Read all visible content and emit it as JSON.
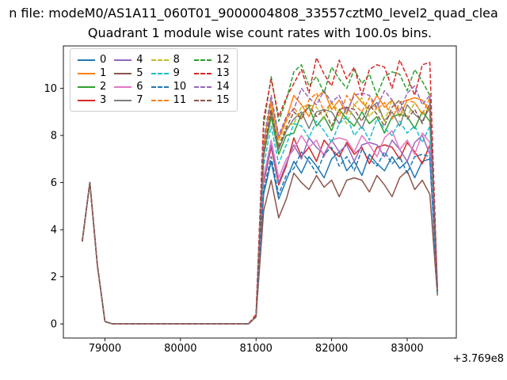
{
  "figure": {
    "suptitle": "n file: modeM0/AS1A11_060T01_9000004808_33557cztM0_level2_quad_clea",
    "title": "Quadrant 1 module wise count rates with 100.0s bins."
  },
  "chart_data": {
    "type": "line",
    "title": "Quadrant 1 module wise count rates with 100.0s bins.",
    "suptitle": "n file: modeM0/AS1A11_060T01_9000004808_33557cztM0_level2_quad_clea",
    "xlabel": "",
    "ylabel": "",
    "grid": false,
    "legend_position": "upper left",
    "legend_columns": 4,
    "x_ticks": [
      79000,
      80000,
      81000,
      82000,
      83000
    ],
    "y_ticks": [
      0,
      2,
      4,
      6,
      8,
      10
    ],
    "x_offset_label": "+3.769e8",
    "xlim": [
      78450,
      83650
    ],
    "ylim": [
      -0.6,
      11.8
    ],
    "x": [
      78700,
      78800,
      78900,
      79000,
      79100,
      79200,
      79300,
      79400,
      79500,
      79600,
      79700,
      79800,
      79900,
      80000,
      80100,
      80200,
      80300,
      80400,
      80500,
      80600,
      80700,
      80800,
      80900,
      81000,
      81100,
      81200,
      81300,
      81400,
      81500,
      81600,
      81700,
      81800,
      81900,
      82000,
      82100,
      82200,
      82300,
      82400,
      82500,
      82600,
      82700,
      82800,
      82900,
      83000,
      83100,
      83200,
      83300,
      83400
    ],
    "series": [
      {
        "name": "0",
        "color": "#1f77b4",
        "dash": false,
        "values": [
          3.5,
          6.0,
          2.5,
          0.1,
          0,
          0,
          0,
          0,
          0,
          0,
          0,
          0,
          0,
          0,
          0,
          0,
          0,
          0,
          0,
          0,
          0,
          0,
          0,
          0.3,
          5.5,
          6.9,
          5.3,
          6.1,
          6.9,
          6.4,
          7.1,
          6.7,
          6.2,
          7.0,
          7.3,
          6.5,
          6.9,
          6.3,
          7.2,
          6.8,
          6.5,
          7.1,
          6.6,
          6.9,
          6.2,
          6.9,
          7.0,
          1.3
        ]
      },
      {
        "name": "1",
        "color": "#ff7f0e",
        "dash": false,
        "values": [
          3.5,
          6.0,
          2.5,
          0.1,
          0,
          0,
          0,
          0,
          0,
          0,
          0,
          0,
          0,
          0,
          0,
          0,
          0,
          0,
          0,
          0,
          0,
          0,
          0,
          0.3,
          7.6,
          9.5,
          7.9,
          8.7,
          9.7,
          9.3,
          8.8,
          9.6,
          9.9,
          9.1,
          9.5,
          8.9,
          9.8,
          9.4,
          9.1,
          9.7,
          9.2,
          9.5,
          8.8,
          9.5,
          9.6,
          9.5,
          9.0,
          1.4
        ]
      },
      {
        "name": "2",
        "color": "#2ca02c",
        "dash": false,
        "values": [
          3.5,
          6.0,
          2.5,
          0.1,
          0,
          0,
          0,
          0,
          0,
          0,
          0,
          0,
          0,
          0,
          0,
          0,
          0,
          0,
          0,
          0,
          0,
          0,
          0,
          0.3,
          7.1,
          8.8,
          7.2,
          8.0,
          8.1,
          8.9,
          9.2,
          8.4,
          8.8,
          8.2,
          9.1,
          8.7,
          8.4,
          9.0,
          8.5,
          8.8,
          8.1,
          8.8,
          8.9,
          8.8,
          8.3,
          9.0,
          8.6,
          1.3
        ]
      },
      {
        "name": "3",
        "color": "#d62728",
        "dash": false,
        "values": [
          3.5,
          6.0,
          2.5,
          0.1,
          0,
          0,
          0,
          0,
          0,
          0,
          0,
          0,
          0,
          0,
          0,
          0,
          0,
          0,
          0,
          0,
          0,
          0,
          0,
          0.3,
          6.0,
          7.5,
          5.9,
          6.7,
          7.9,
          7.1,
          7.5,
          6.9,
          7.8,
          7.4,
          7.1,
          7.7,
          7.2,
          7.5,
          6.8,
          7.5,
          7.6,
          7.5,
          7.0,
          7.7,
          7.3,
          6.8,
          7.6,
          1.3
        ]
      },
      {
        "name": "4",
        "color": "#9467bd",
        "dash": false,
        "values": [
          3.5,
          6.0,
          2.5,
          0.1,
          0,
          0,
          0,
          0,
          0,
          0,
          0,
          0,
          0,
          0,
          0,
          0,
          0,
          0,
          0,
          0,
          0,
          0,
          0,
          0.3,
          6.1,
          7.6,
          6.0,
          6.8,
          7.6,
          7.0,
          7.9,
          7.5,
          7.2,
          7.8,
          7.3,
          7.6,
          6.9,
          7.6,
          7.7,
          7.6,
          7.1,
          7.8,
          7.4,
          6.9,
          7.7,
          8.0,
          7.2,
          1.4
        ]
      },
      {
        "name": "5",
        "color": "#8c564b",
        "dash": false,
        "values": [
          3.5,
          6.0,
          2.5,
          0.1,
          0,
          0,
          0,
          0,
          0,
          0,
          0,
          0,
          0,
          0,
          0,
          0,
          0,
          0,
          0,
          0,
          0,
          0,
          0,
          0.3,
          4.8,
          6.1,
          4.5,
          5.3,
          6.4,
          6.0,
          5.7,
          6.3,
          5.8,
          6.1,
          5.4,
          6.1,
          6.2,
          6.1,
          5.6,
          6.3,
          5.9,
          5.4,
          6.2,
          6.5,
          5.7,
          6.1,
          5.5,
          1.2
        ]
      },
      {
        "name": "6",
        "color": "#e377c2",
        "dash": false,
        "values": [
          3.5,
          6.0,
          2.5,
          0.1,
          0,
          0,
          0,
          0,
          0,
          0,
          0,
          0,
          0,
          0,
          0,
          0,
          0,
          0,
          0,
          0,
          0,
          0,
          0,
          0.3,
          6.2,
          7.8,
          6.2,
          7.0,
          7.4,
          8.0,
          7.5,
          7.8,
          7.1,
          7.8,
          7.9,
          7.8,
          7.3,
          8.0,
          7.6,
          7.1,
          7.9,
          8.2,
          7.4,
          7.8,
          7.2,
          8.1,
          7.7,
          1.3
        ]
      },
      {
        "name": "7",
        "color": "#7f7f7f",
        "dash": false,
        "values": [
          3.5,
          6.0,
          2.5,
          0.1,
          0,
          0,
          0,
          0,
          0,
          0,
          0,
          0,
          0,
          0,
          0,
          0,
          0,
          0,
          0,
          0,
          0,
          0,
          0,
          0.3,
          7.2,
          9.0,
          7.4,
          8.2,
          8.7,
          9.0,
          8.3,
          9.0,
          9.1,
          9.0,
          8.5,
          9.2,
          8.8,
          8.3,
          9.1,
          9.4,
          8.6,
          9.0,
          8.4,
          9.3,
          8.9,
          8.6,
          9.2,
          1.4
        ]
      },
      {
        "name": "8",
        "color": "#bcbd22",
        "dash": true,
        "values": [
          3.5,
          6.0,
          2.5,
          0.1,
          0,
          0,
          0,
          0,
          0,
          0,
          0,
          0,
          0,
          0,
          0,
          0,
          0,
          0,
          0,
          0,
          0,
          0,
          0,
          0.3,
          7.4,
          9.2,
          7.6,
          8.4,
          8.5,
          9.2,
          9.3,
          9.2,
          8.7,
          9.4,
          9.0,
          8.5,
          9.3,
          9.6,
          8.8,
          9.2,
          8.6,
          9.5,
          9.1,
          8.8,
          9.4,
          8.9,
          9.2,
          1.4
        ]
      },
      {
        "name": "9",
        "color": "#17becf",
        "dash": true,
        "values": [
          3.5,
          6.0,
          2.5,
          0.1,
          0,
          0,
          0,
          0,
          0,
          0,
          0,
          0,
          0,
          0,
          0,
          0,
          0,
          0,
          0,
          0,
          0,
          0,
          0,
          0.3,
          6.7,
          8.4,
          6.8,
          7.6,
          8.5,
          8.4,
          7.9,
          8.6,
          8.2,
          7.7,
          8.5,
          8.8,
          8.0,
          8.4,
          7.8,
          8.7,
          8.3,
          8.0,
          8.6,
          8.1,
          8.4,
          7.7,
          8.4,
          1.3
        ]
      },
      {
        "name": "10",
        "color": "#1f77b4",
        "dash": true,
        "values": [
          3.5,
          6.0,
          2.5,
          0.1,
          0,
          0,
          0,
          0,
          0,
          0,
          0,
          0,
          0,
          0,
          0,
          0,
          0,
          0,
          0,
          0,
          0,
          0,
          0,
          0.3,
          5.7,
          7.1,
          5.5,
          6.3,
          6.6,
          7.3,
          6.9,
          6.4,
          7.2,
          7.5,
          6.7,
          7.1,
          6.5,
          7.4,
          7.0,
          6.7,
          7.3,
          6.8,
          7.1,
          6.4,
          7.1,
          7.2,
          7.1,
          1.3
        ]
      },
      {
        "name": "11",
        "color": "#ff7f0e",
        "dash": true,
        "values": [
          3.5,
          6.0,
          2.5,
          0.1,
          0,
          0,
          0,
          0,
          0,
          0,
          0,
          0,
          0,
          0,
          0,
          0,
          0,
          0,
          0,
          0,
          0,
          0,
          0,
          0.3,
          7.5,
          9.4,
          7.8,
          8.6,
          9.2,
          8.7,
          9.5,
          9.8,
          9.0,
          9.4,
          8.8,
          9.7,
          9.3,
          9.0,
          9.6,
          9.1,
          9.4,
          8.7,
          9.4,
          9.5,
          9.4,
          8.9,
          9.6,
          1.4
        ]
      },
      {
        "name": "12",
        "color": "#2ca02c",
        "dash": true,
        "values": [
          3.5,
          6.0,
          2.5,
          0.1,
          0,
          0,
          0,
          0,
          0,
          0,
          0,
          0,
          0,
          0,
          0,
          0,
          0,
          0,
          0,
          0,
          0,
          0,
          0,
          0.3,
          8.4,
          10.5,
          8.6,
          9.5,
          10.7,
          11.0,
          10.1,
          10.5,
          9.8,
          10.9,
          10.4,
          10.0,
          10.8,
          10.2,
          10.6,
          9.7,
          10.5,
          10.7,
          10.6,
          9.9,
          10.8,
          10.3,
          9.7,
          1.5
        ]
      },
      {
        "name": "13",
        "color": "#d62728",
        "dash": true,
        "values": [
          3.5,
          6.0,
          2.5,
          0.1,
          0,
          0,
          0,
          0,
          0,
          0,
          0,
          0,
          0,
          0,
          0,
          0,
          0,
          0,
          0,
          0,
          0,
          0,
          0,
          0.4,
          8.7,
          10.4,
          8.8,
          9.6,
          10.2,
          10.8,
          9.8,
          11.3,
          10.6,
          10.1,
          11.2,
          10.4,
          10.9,
          9.7,
          10.8,
          11.0,
          10.9,
          10.0,
          11.2,
          10.5,
          9.7,
          11.0,
          11.1,
          1.5
        ]
      },
      {
        "name": "14",
        "color": "#9467bd",
        "dash": true,
        "values": [
          3.5,
          6.0,
          2.5,
          0.1,
          0,
          0,
          0,
          0,
          0,
          0,
          0,
          0,
          0,
          0,
          0,
          0,
          0,
          0,
          0,
          0,
          0,
          0,
          0,
          0.3,
          7.8,
          9.7,
          8.0,
          8.8,
          9.1,
          10.0,
          9.6,
          9.3,
          9.9,
          9.4,
          9.7,
          9.0,
          9.7,
          9.8,
          9.7,
          9.2,
          9.9,
          9.5,
          9.0,
          9.8,
          10.1,
          9.3,
          9.7,
          1.4
        ]
      },
      {
        "name": "15",
        "color": "#8c564b",
        "dash": true,
        "values": [
          3.5,
          6.0,
          2.5,
          0.1,
          0,
          0,
          0,
          0,
          0,
          0,
          0,
          0,
          0,
          0,
          0,
          0,
          0,
          0,
          0,
          0,
          0,
          0,
          0,
          0.3,
          7.3,
          9.1,
          7.5,
          8.3,
          9.0,
          8.7,
          9.3,
          8.8,
          9.1,
          8.4,
          9.1,
          9.2,
          9.1,
          8.6,
          9.3,
          8.9,
          8.4,
          9.2,
          9.5,
          8.7,
          9.1,
          8.5,
          9.4,
          1.4
        ]
      }
    ]
  }
}
